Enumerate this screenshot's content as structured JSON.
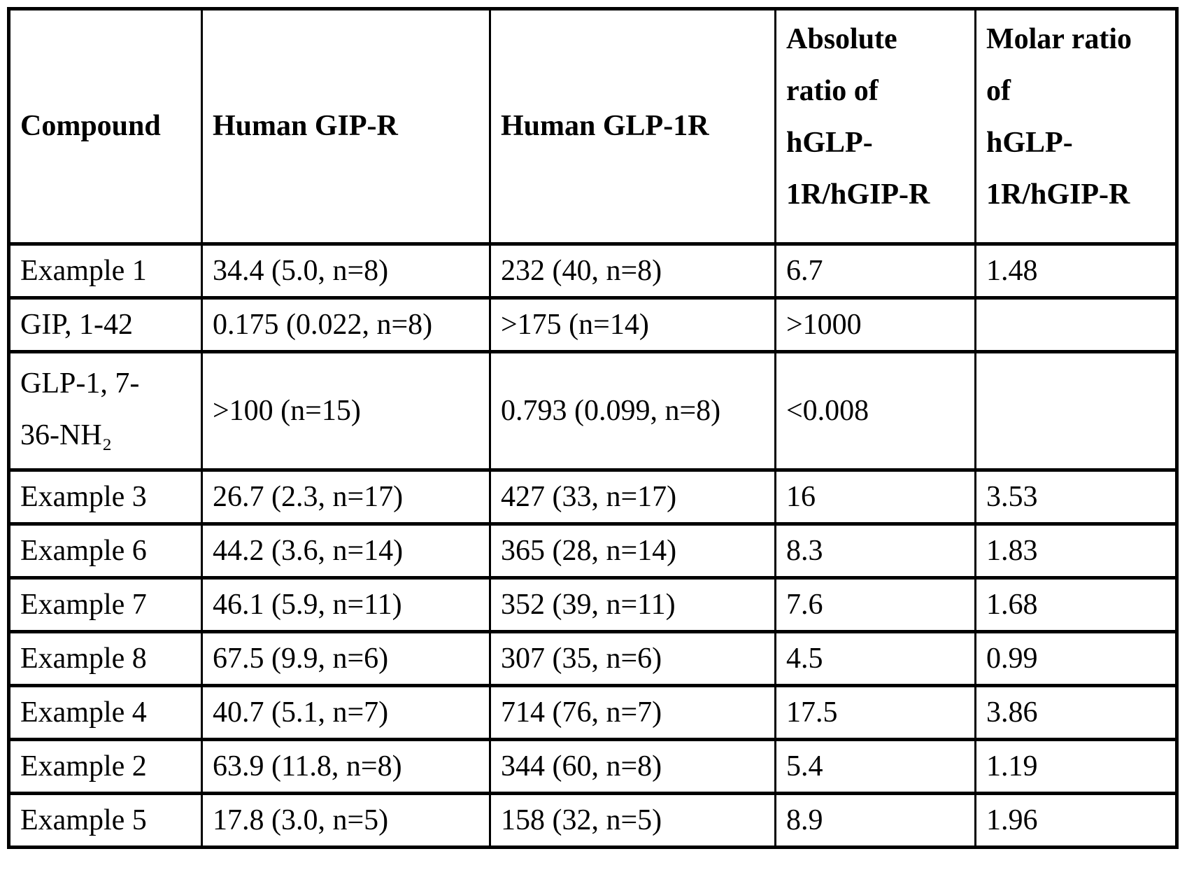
{
  "table": {
    "headers": [
      "Compound",
      "Human GIP-R",
      "Human GLP-1R",
      "Absolute\nratio of\nhGLP-\n1R/hGIP-R",
      "Molar ratio\nof\nhGLP-\n1R/hGIP-R"
    ],
    "rows": [
      {
        "cells": [
          "Example 1",
          "34.4 (5.0, n=8)",
          "232 (40, n=8)",
          "6.7",
          "1.48"
        ]
      },
      {
        "cells": [
          "GIP, 1-42",
          "0.175 (0.022, n=8)",
          ">175 (n=14)",
          ">1000",
          ""
        ]
      },
      {
        "cells": [
          "GLP-1, 7-\n36-NH₂",
          ">100 (n=15)",
          "0.793 (0.099, n=8)",
          "<0.008",
          ""
        ]
      },
      {
        "cells": [
          "Example 3",
          "26.7 (2.3, n=17)",
          "427 (33, n=17)",
          "16",
          "3.53"
        ]
      },
      {
        "cells": [
          "Example 6",
          "44.2 (3.6, n=14)",
          "365 (28, n=14)",
          "8.3",
          "1.83"
        ]
      },
      {
        "cells": [
          "Example 7",
          "46.1 (5.9, n=11)",
          "352 (39, n=11)",
          "7.6",
          "1.68"
        ]
      },
      {
        "cells": [
          "Example 8",
          "67.5 (9.9, n=6)",
          "307 (35, n=6)",
          "4.5",
          "0.99"
        ]
      },
      {
        "cells": [
          "Example 4",
          "40.7 (5.1, n=7)",
          "714 (76, n=7)",
          "17.5",
          "3.86"
        ]
      },
      {
        "cells": [
          "Example 2",
          "63.9 (11.8, n=8)",
          "344 (60, n=8)",
          "5.4",
          "1.19"
        ]
      },
      {
        "cells": [
          "Example 5",
          "17.8 (3.0, n=5)",
          "158 (32, n=5)",
          "8.9",
          "1.96"
        ]
      }
    ],
    "colors": {
      "text": "#000000",
      "border": "#000000",
      "background": "#ffffff"
    }
  }
}
